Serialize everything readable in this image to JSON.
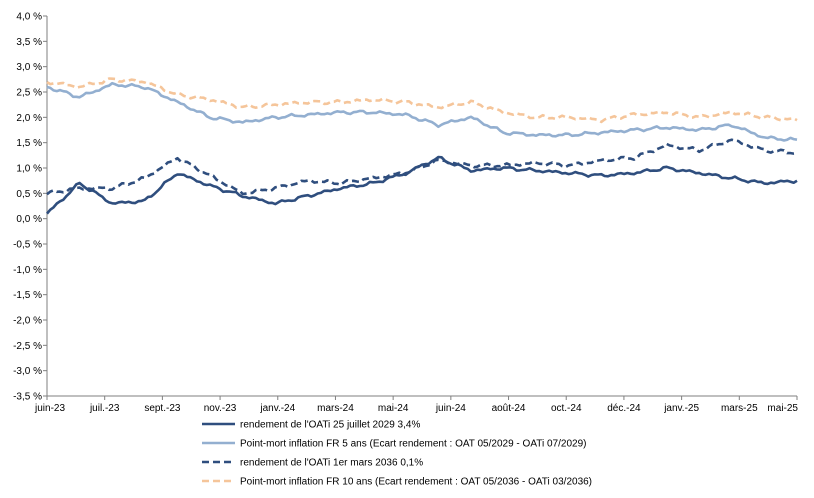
{
  "chart_data": {
    "type": "line",
    "title": "",
    "xlabel": "",
    "ylabel": "",
    "ylim": [
      -3.5,
      4.0
    ],
    "y_ticks": [
      4.0,
      3.5,
      3.0,
      2.5,
      2.0,
      1.5,
      1.0,
      0.5,
      0.0,
      -0.5,
      -1.0,
      -1.5,
      -2.0,
      -2.5,
      -3.0,
      -3.5
    ],
    "y_tick_labels": [
      "4,0 %",
      "3,5 %",
      "3,0 %",
      "2,5 %",
      "2,0 %",
      "1,5 %",
      "1,0 %",
      "0,5 %",
      "0,0 %",
      "-0,5 %",
      "-1,0 %",
      "-1,5 %",
      "-2,0 %",
      "-2,5 %",
      "-3,0 %",
      "-3,5 %"
    ],
    "x_tick_labels": [
      "juin-23",
      "juil.-23",
      "sept.-23",
      "nov.-23",
      "janv.-24",
      "mars-24",
      "mai-24",
      "juin-24",
      "août-24",
      "oct.-24",
      "déc.-24",
      "janv.-25",
      "mars-25",
      "mai-25"
    ],
    "x": [
      "2023-06",
      "2023-07",
      "2023-08",
      "2023-09",
      "2023-10",
      "2023-11",
      "2023-12",
      "2024-01",
      "2024-02",
      "2024-03",
      "2024-04",
      "2024-05",
      "2024-06",
      "2024-07",
      "2024-08",
      "2024-09",
      "2024-10",
      "2024-11",
      "2024-12",
      "2025-01",
      "2025-02",
      "2025-03",
      "2025-04",
      "2025-05"
    ],
    "legend_position": "bottom",
    "grid": false,
    "series": [
      {
        "name": "rendement de l'OATi 25 juillet 2029 3,4%",
        "color": "#2f4e7e",
        "style": "solid",
        "values": [
          0.1,
          0.7,
          0.3,
          0.35,
          0.9,
          0.65,
          0.45,
          0.3,
          0.45,
          0.6,
          0.7,
          0.9,
          1.2,
          0.95,
          1.0,
          0.95,
          0.9,
          0.85,
          0.9,
          1.0,
          0.9,
          0.8,
          0.7,
          0.75
        ]
      },
      {
        "name": "Point-mort inflation FR 5 ans (Ecart rendement : OAT 05/2029 - OATi 07/2029)",
        "color": "#93afd0",
        "style": "solid",
        "values": [
          2.6,
          2.4,
          2.65,
          2.6,
          2.3,
          2.0,
          1.9,
          2.0,
          2.05,
          2.1,
          2.1,
          2.05,
          1.85,
          2.0,
          1.7,
          1.65,
          1.65,
          1.7,
          1.75,
          1.8,
          1.75,
          1.85,
          1.6,
          1.55
        ]
      },
      {
        "name": "rendement de l'OATi 1er mars 2036 0,1%",
        "color": "#2f4e7e",
        "style": "dashed",
        "values": [
          0.5,
          0.6,
          0.6,
          0.8,
          1.2,
          0.85,
          0.5,
          0.6,
          0.75,
          0.7,
          0.8,
          0.9,
          1.15,
          1.05,
          1.05,
          1.1,
          1.05,
          1.15,
          1.2,
          1.45,
          1.35,
          1.55,
          1.35,
          1.3
        ]
      },
      {
        "name": "Point-mort inflation FR 10 ans (Ecart rendement : OAT 05/2036 - OATi 03/2036)",
        "color": "#f5c59a",
        "style": "dashed",
        "values": [
          2.7,
          2.6,
          2.75,
          2.7,
          2.45,
          2.35,
          2.2,
          2.25,
          2.3,
          2.3,
          2.35,
          2.3,
          2.2,
          2.3,
          2.1,
          2.0,
          2.0,
          1.95,
          2.05,
          2.1,
          2.0,
          2.1,
          2.0,
          1.95
        ]
      }
    ]
  }
}
